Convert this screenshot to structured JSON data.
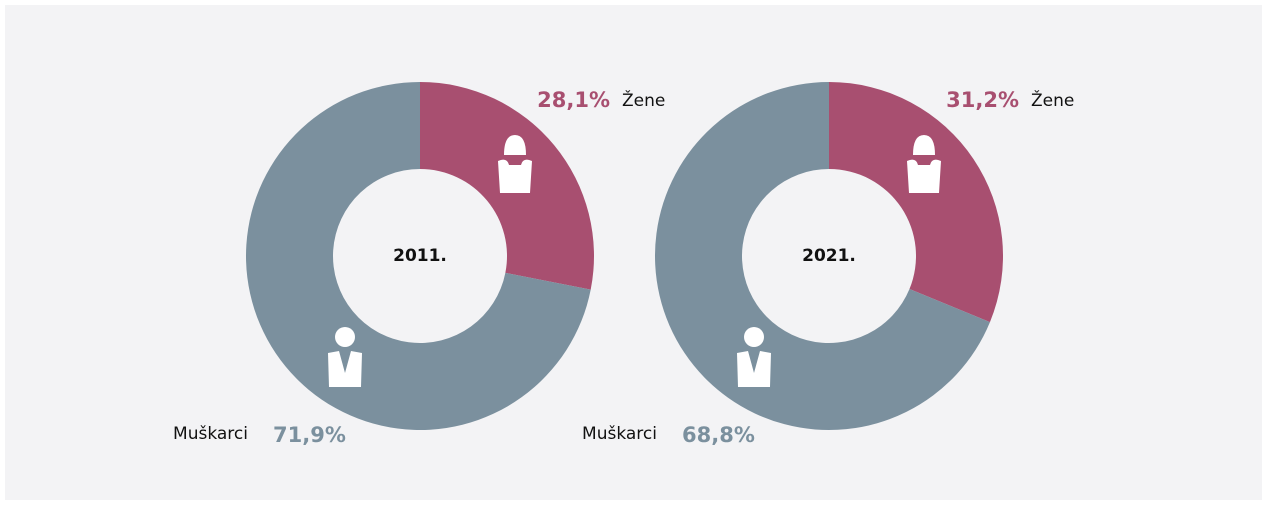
{
  "chart_data": [
    {
      "type": "donut",
      "title": "2011.",
      "categories": [
        "Žene",
        "Muškarci"
      ],
      "values": [
        28.1,
        71.9
      ],
      "value_labels": [
        "28,1%",
        "71,9%"
      ],
      "colors": [
        "#a84f70",
        "#7b909e"
      ]
    },
    {
      "type": "donut",
      "title": "2021.",
      "categories": [
        "Žene",
        "Muškarci"
      ],
      "values": [
        31.2,
        68.8
      ],
      "value_labels": [
        "31,2%",
        "68,8%"
      ],
      "colors": [
        "#a84f70",
        "#7b909e"
      ]
    }
  ]
}
